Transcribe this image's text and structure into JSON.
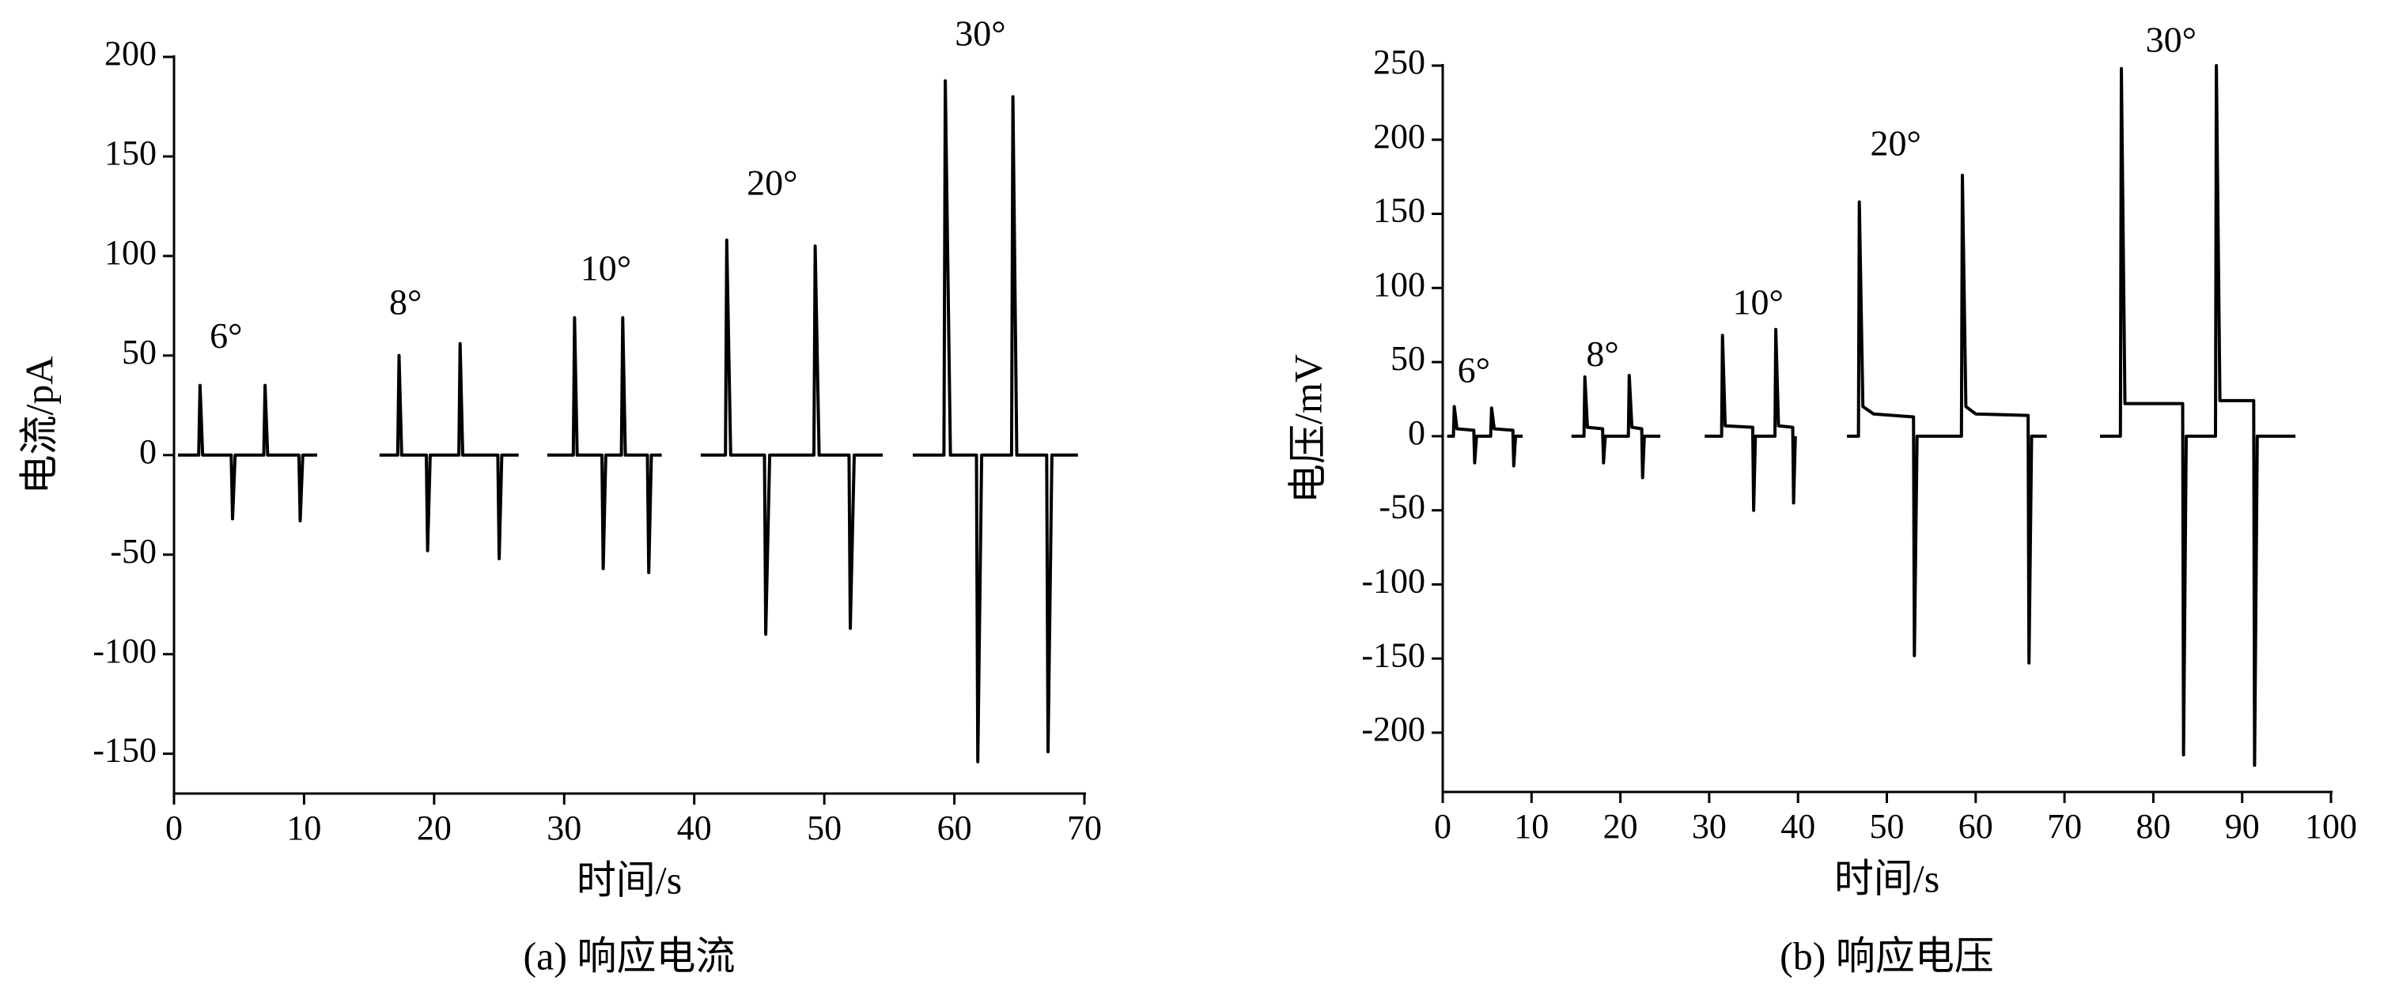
{
  "chart_data": [
    {
      "type": "line",
      "xlabel": "时间/s",
      "ylabel": "电流/pA",
      "caption": "(a) 响应电流",
      "color": "#000000",
      "xlim": [
        0,
        70
      ],
      "ylim": [
        -170,
        200
      ],
      "xticks": [
        0,
        10,
        20,
        30,
        40,
        50,
        60,
        70
      ],
      "yticks": [
        -150,
        -100,
        -50,
        0,
        50,
        100,
        150,
        200
      ],
      "x": [
        0.3,
        1.9,
        2.0,
        2.2,
        4.4,
        4.5,
        4.7,
        6.9,
        7.0,
        7.2,
        9.6,
        9.7,
        9.9,
        11,
        null,
        15.8,
        17.2,
        17.3,
        17.5,
        19.4,
        19.5,
        19.7,
        21.9,
        22.0,
        22.2,
        24.9,
        25.0,
        25.2,
        26.5,
        null,
        28.7,
        30.7,
        30.8,
        31.0,
        32.9,
        33.0,
        33.2,
        34.4,
        34.5,
        34.7,
        36.4,
        36.5,
        36.7,
        37.5,
        null,
        40.5,
        42.4,
        42.5,
        42.8,
        45.4,
        45.5,
        45.8,
        49.2,
        49.3,
        49.6,
        51.9,
        52.0,
        52.3,
        54.5,
        null,
        56.8,
        59.2,
        59.3,
        59.7,
        61.7,
        61.8,
        62.1,
        64.4,
        64.5,
        64.8,
        67.1,
        67.2,
        67.5,
        69.5
      ],
      "values": [
        0,
        0,
        35,
        0,
        0,
        -32,
        0,
        0,
        35,
        0,
        0,
        -33,
        0,
        0,
        null,
        0,
        0,
        50,
        0,
        0,
        -48,
        0,
        0,
        56,
        0,
        0,
        -52,
        0,
        0,
        null,
        0,
        0,
        69,
        0,
        0,
        -57,
        0,
        0,
        69,
        0,
        0,
        -59,
        0,
        0,
        null,
        0,
        0,
        108,
        0,
        0,
        -90,
        0,
        0,
        105,
        0,
        0,
        -87,
        0,
        0,
        null,
        0,
        0,
        188,
        0,
        0,
        -154,
        0,
        0,
        180,
        0,
        0,
        -149,
        0,
        0
      ],
      "annotations": [
        {
          "text": "6°",
          "x": 4,
          "y": 58
        },
        {
          "text": "8°",
          "x": 17.8,
          "y": 75
        },
        {
          "text": "10°",
          "x": 33.2,
          "y": 92
        },
        {
          "text": "20°",
          "x": 46,
          "y": 135
        },
        {
          "text": "30°",
          "x": 62,
          "y": 210
        }
      ]
    },
    {
      "type": "line",
      "xlabel": "时间/s",
      "ylabel": "电压/mV",
      "caption": "(b) 响应电压",
      "color": "#000000",
      "xlim": [
        0,
        100
      ],
      "ylim": [
        -240,
        250
      ],
      "xticks": [
        0,
        10,
        20,
        30,
        40,
        50,
        60,
        70,
        80,
        90,
        100
      ],
      "yticks": [
        -200,
        -150,
        -100,
        -50,
        0,
        50,
        100,
        150,
        200,
        250
      ],
      "x": [
        0.5,
        1.2,
        1.3,
        1.6,
        3.5,
        3.6,
        3.8,
        5.4,
        5.5,
        5.8,
        7.9,
        8.0,
        8.2,
        9,
        null,
        14.5,
        15.9,
        16.0,
        16.3,
        18.0,
        18.1,
        18.3,
        20.9,
        21.0,
        21.3,
        22.4,
        22.5,
        22.7,
        24.5,
        null,
        29.5,
        31.4,
        31.5,
        31.8,
        34.9,
        35.0,
        35.2,
        37.4,
        37.5,
        37.8,
        39.4,
        39.5,
        39.7,
        null,
        45.5,
        46.8,
        46.9,
        47.3,
        48.5,
        53.0,
        53.1,
        53.4,
        58.4,
        58.5,
        58.9,
        60,
        65.9,
        66.0,
        66.3,
        68,
        null,
        74,
        76.3,
        76.4,
        76.8,
        83.3,
        83.4,
        83.7,
        87.0,
        87.1,
        87.5,
        91.3,
        91.4,
        91.7,
        96
      ],
      "values": [
        0,
        0,
        20,
        5,
        4,
        -18,
        0,
        0,
        19,
        5,
        4,
        -20,
        0,
        0,
        null,
        0,
        0,
        40,
        6,
        5,
        -18,
        0,
        0,
        41,
        6,
        5,
        -28,
        0,
        0,
        null,
        0,
        0,
        68,
        7,
        6,
        -50,
        0,
        0,
        72,
        7,
        6,
        -45,
        0,
        null,
        0,
        0,
        158,
        20,
        15,
        13,
        -148,
        0,
        0,
        176,
        20,
        15,
        14,
        -153,
        0,
        0,
        null,
        0,
        0,
        248,
        22,
        22,
        -215,
        0,
        0,
        250,
        24,
        24,
        -222,
        0,
        0
      ],
      "annotations": [
        {
          "text": "6°",
          "x": 3.5,
          "y": 42
        },
        {
          "text": "8°",
          "x": 18,
          "y": 53
        },
        {
          "text": "10°",
          "x": 35.5,
          "y": 88
        },
        {
          "text": "20°",
          "x": 51,
          "y": 195
        },
        {
          "text": "30°",
          "x": 82,
          "y": 265
        }
      ]
    }
  ]
}
